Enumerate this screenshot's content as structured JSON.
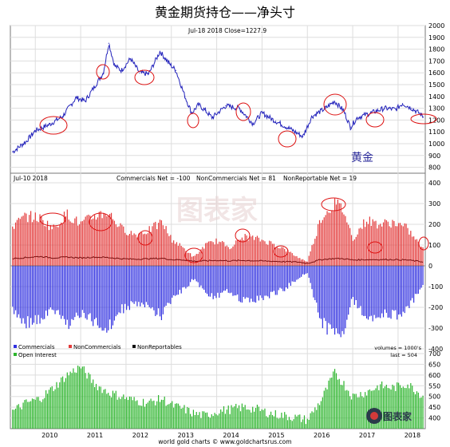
{
  "title": "黄金期货持仓——净头寸",
  "source": "world gold charts © www.goldchartsrus.com",
  "watermark": "图表家",
  "logo_text": "图表家",
  "colors": {
    "price": "#2222bb",
    "noncommercial": "#e33a3a",
    "commercial": "#3030e0",
    "nonreportable": "#111111",
    "open_interest": "#2db52d",
    "annotation_circle": "#dd1111",
    "frame": "#777777",
    "grid": "#dddddd"
  },
  "chart_data": [
    {
      "type": "line",
      "panel": "price",
      "header": "Jul-18  2018    Close=1227.9",
      "label": "黄金",
      "ylim": [
        750,
        2000
      ],
      "y_ticks": [
        "800",
        "900",
        "1000",
        "1100",
        "1200",
        "1300",
        "1400",
        "1500",
        "1600",
        "1700",
        "1800",
        "1900",
        "2000"
      ],
      "series": [
        {
          "x": [
            2009.5,
            2009.8,
            2010.0,
            2010.3,
            2010.6,
            2010.9,
            2011.1,
            2011.3,
            2011.5,
            2011.62,
            2011.75,
            2011.9,
            2012.1,
            2012.3,
            2012.5,
            2012.75,
            2012.95,
            2013.1,
            2013.3,
            2013.45,
            2013.6,
            2013.75,
            2013.9,
            2014.2,
            2014.5,
            2014.8,
            2015.0,
            2015.3,
            2015.6,
            2015.9,
            2016.1,
            2016.4,
            2016.6,
            2016.8,
            2016.95,
            2017.1,
            2017.4,
            2017.7,
            2017.95,
            2018.1,
            2018.3,
            2018.5,
            2018.55
          ],
          "values": [
            930,
            1020,
            1110,
            1160,
            1230,
            1390,
            1360,
            1480,
            1600,
            1850,
            1660,
            1620,
            1720,
            1600,
            1590,
            1780,
            1680,
            1620,
            1400,
            1260,
            1330,
            1280,
            1220,
            1320,
            1300,
            1170,
            1260,
            1190,
            1130,
            1060,
            1230,
            1300,
            1360,
            1280,
            1140,
            1220,
            1260,
            1300,
            1290,
            1340,
            1300,
            1250,
            1228
          ]
        }
      ]
    },
    {
      "type": "bar",
      "panel": "cot",
      "header_date": "Jul-10  2018",
      "header_values": [
        "Commercials Net = -100",
        "NonCommercials Net = 81",
        "NonReportable Net = 19"
      ],
      "ylim": [
        -400,
        400
      ],
      "y_ticks": [
        "-400",
        "-300",
        "-200",
        "-100",
        "0",
        "100",
        "200",
        "300",
        "400"
      ],
      "legend": [
        "Commercials",
        "NonCommercials",
        "NonReportables"
      ],
      "volume_note": "volumes = 1000's",
      "x": [
        2009.5,
        2009.8,
        2010.1,
        2010.4,
        2010.7,
        2011.0,
        2011.3,
        2011.6,
        2011.9,
        2012.2,
        2012.5,
        2012.8,
        2013.0,
        2013.3,
        2013.5,
        2013.75,
        2014.0,
        2014.3,
        2014.6,
        2014.9,
        2015.2,
        2015.5,
        2015.8,
        2016.0,
        2016.3,
        2016.6,
        2016.8,
        2017.0,
        2017.3,
        2017.6,
        2017.9,
        2018.2,
        2018.55
      ],
      "series": [
        {
          "name": "NonCommercials",
          "values": [
            190,
            240,
            230,
            180,
            250,
            200,
            240,
            260,
            180,
            150,
            170,
            210,
            130,
            80,
            40,
            100,
            120,
            90,
            140,
            130,
            110,
            80,
            40,
            20,
            230,
            300,
            270,
            130,
            220,
            200,
            210,
            180,
            81
          ]
        },
        {
          "name": "Commercials",
          "values": [
            -220,
            -270,
            -260,
            -210,
            -280,
            -230,
            -270,
            -300,
            -210,
            -180,
            -200,
            -240,
            -160,
            -110,
            -60,
            -130,
            -150,
            -120,
            -170,
            -160,
            -140,
            -110,
            -60,
            -30,
            -270,
            -330,
            -300,
            -160,
            -250,
            -230,
            -240,
            -210,
            -100
          ]
        },
        {
          "name": "NonReportables",
          "values": [
            35,
            40,
            45,
            38,
            42,
            38,
            42,
            40,
            34,
            32,
            34,
            36,
            30,
            28,
            22,
            24,
            26,
            24,
            26,
            24,
            22,
            20,
            18,
            12,
            30,
            35,
            34,
            28,
            30,
            30,
            30,
            28,
            19
          ]
        }
      ]
    },
    {
      "type": "bar",
      "panel": "open_interest",
      "legend": [
        "Open Interest"
      ],
      "last_note": "last = 504",
      "ylim": [
        350,
        700
      ],
      "y_ticks": [
        "400",
        "450",
        "500",
        "550",
        "600",
        "650",
        "700"
      ],
      "x_ticks": [
        "2010",
        "2011",
        "2012",
        "2013",
        "2014",
        "2015",
        "2016",
        "2017",
        "2018"
      ],
      "x": [
        2009.5,
        2009.8,
        2010.1,
        2010.4,
        2010.7,
        2011.0,
        2011.3,
        2011.6,
        2011.9,
        2012.2,
        2012.5,
        2012.8,
        2013.0,
        2013.3,
        2013.5,
        2013.75,
        2014.0,
        2014.3,
        2014.6,
        2014.9,
        2015.2,
        2015.5,
        2015.8,
        2016.0,
        2016.3,
        2016.6,
        2016.8,
        2017.0,
        2017.3,
        2017.6,
        2017.9,
        2018.2,
        2018.55
      ],
      "values": [
        430,
        470,
        490,
        540,
        600,
        640,
        560,
        520,
        500,
        480,
        470,
        490,
        460,
        440,
        420,
        410,
        430,
        440,
        450,
        440,
        420,
        410,
        400,
        390,
        480,
        610,
        560,
        500,
        520,
        550,
        540,
        560,
        504
      ]
    }
  ]
}
